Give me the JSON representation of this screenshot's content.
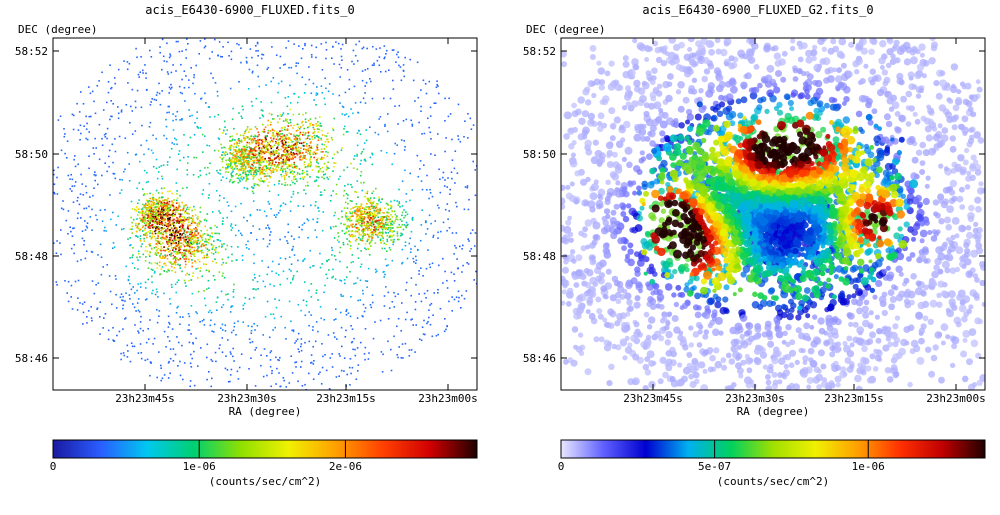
{
  "chart_data": [
    {
      "type": "heatmap",
      "title": "acis_E6430-6900_FLUXED.fits_0",
      "xlabel": "RA (degree)",
      "ylabel": "DEC (degree)",
      "x_ticks": [
        "23h23m45s",
        "23h23m30s",
        "23h23m15s",
        "23h23m00s"
      ],
      "y_ticks": [
        "58:52",
        "58:50",
        "58:48",
        "58:46"
      ],
      "colorbar": {
        "label": "(counts/sec/cm^2)",
        "ticks": [
          {
            "label": "0",
            "value": 0
          },
          {
            "label": "1e-06",
            "value": 1e-06
          },
          {
            "label": "2e-06",
            "value": 2e-06
          }
        ],
        "range": [
          0,
          2.9e-06
        ],
        "colors": [
          "#1a1aa0",
          "#2a5cff",
          "#00c8f0",
          "#00d070",
          "#90e000",
          "#f0f000",
          "#ffa000",
          "#ff4000",
          "#d00000",
          "#200000"
        ]
      },
      "style": "sparse"
    },
    {
      "type": "heatmap",
      "title": "acis_E6430-6900_FLUXED_G2.fits_0",
      "xlabel": "RA (degree)",
      "ylabel": "DEC (degree)",
      "x_ticks": [
        "23h23m45s",
        "23h23m30s",
        "23h23m15s",
        "23h23m00s"
      ],
      "y_ticks": [
        "58:52",
        "58:50",
        "58:48",
        "58:46"
      ],
      "colorbar": {
        "label": "(counts/sec/cm^2)",
        "ticks": [
          {
            "label": "0",
            "value": 0
          },
          {
            "label": "5e-07",
            "value": 5e-07
          },
          {
            "label": "1e-06",
            "value": 1e-06
          }
        ],
        "range": [
          0,
          1.38e-06
        ],
        "colors": [
          "#e8e8ff",
          "#6060ff",
          "#0000d0",
          "#00b0f0",
          "#00d060",
          "#a0e000",
          "#f0f000",
          "#ffa000",
          "#ff3000",
          "#c00000",
          "#200000"
        ]
      },
      "style": "smoothed"
    }
  ]
}
